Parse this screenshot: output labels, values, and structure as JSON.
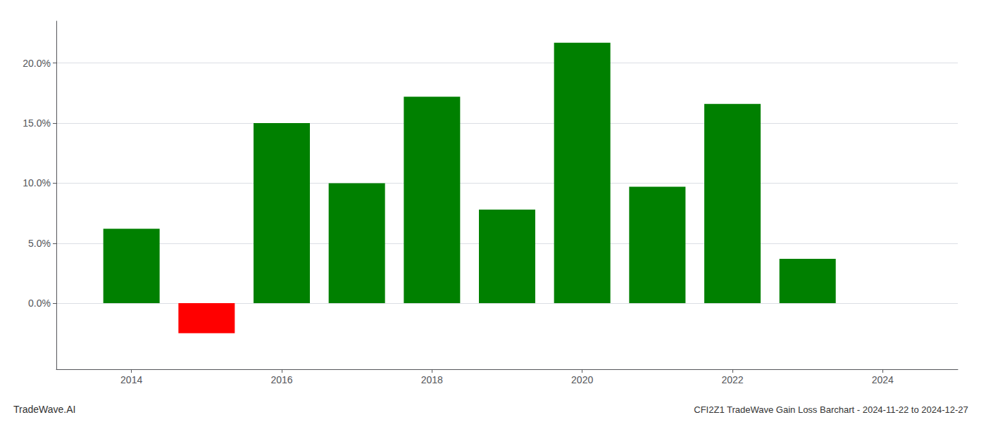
{
  "chart_data": {
    "type": "bar",
    "title": "CFI2Z1 TradeWave Gain Loss Barchart - 2024-11-22 to 2024-12-27",
    "annotations": [
      "TradeWave.AI"
    ],
    "x": [
      2014,
      2015,
      2016,
      2017,
      2018,
      2019,
      2020,
      2021,
      2022,
      2023
    ],
    "values": [
      0.062,
      -0.025,
      0.15,
      0.1,
      0.172,
      0.078,
      0.217,
      0.097,
      0.166,
      0.037
    ],
    "colors": [
      "#008000",
      "#ff0000",
      "#008000",
      "#008000",
      "#008000",
      "#008000",
      "#008000",
      "#008000",
      "#008000",
      "#008000"
    ],
    "xlim": [
      2013.0,
      2025.0
    ],
    "xticks": [
      2014,
      2016,
      2018,
      2020,
      2022,
      2024
    ],
    "ylim": [
      -0.055,
      0.235
    ],
    "yticks": [
      {
        "value": 0.0,
        "label": "0.0%"
      },
      {
        "value": 0.05,
        "label": "5.0%"
      },
      {
        "value": 0.1,
        "label": "10.0%"
      },
      {
        "value": 0.15,
        "label": "15.0%"
      },
      {
        "value": 0.2,
        "label": "20.0%"
      }
    ],
    "grid": true
  }
}
